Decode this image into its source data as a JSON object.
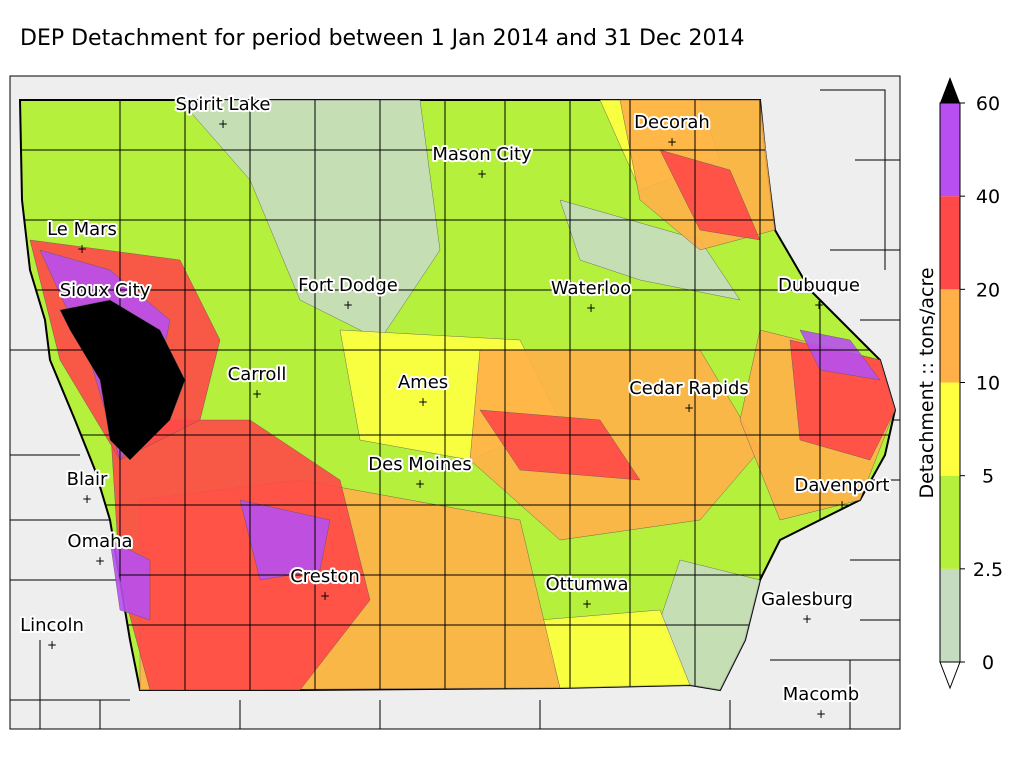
{
  "title": "DEP Detachment for period between 1 Jan 2014 and 31 Dec 2014",
  "cities": [
    "Spirit Lake",
    "Mason City",
    "Decorah",
    "Le Mars",
    "Sioux City",
    "Fort Dodge",
    "Waterloo",
    "Dubuque",
    "Carroll",
    "Ames",
    "Cedar Rapids",
    "Des Moines",
    "Blair",
    "Davenport",
    "Omaha",
    "Creston",
    "Ottumwa",
    "Galesburg",
    "Lincoln",
    "Macomb"
  ],
  "colorbar": {
    "label": "Detachment :: tons/acre",
    "ticks": [
      0,
      2.5,
      5,
      10,
      20,
      40,
      60
    ],
    "colors": [
      "#c6dcc0",
      "#b4f03c",
      "#ffff40",
      "#ffb048",
      "#ff4848",
      "#b84ff0"
    ],
    "over_color": "#000000",
    "under_color": "#ffffff"
  }
}
